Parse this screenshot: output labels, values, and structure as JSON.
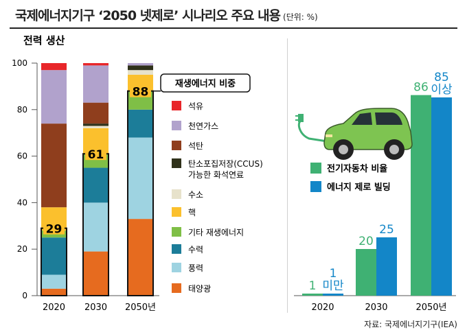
{
  "title": "국제에너지기구 ‘2050 넷제로’ 시나리오 주요 내용",
  "unit": "(단위: %)",
  "source": "자료: 국제에너지기구(IEA)",
  "colors": {
    "석유": "#e8262a",
    "천연가스": "#b1a2cc",
    "석탄": "#8f3e1d",
    "탄소포집저장": "#2f311a",
    "수소": "#e7e2cb",
    "핵": "#fbc02d",
    "기타 재생에너지": "#7fbf46",
    "수력": "#1c7d99",
    "풍력": "#9ed3e1",
    "태양광": "#e66b1f",
    "전기자동차": "#3fb173",
    "빌딩": "#1386c8",
    "car": "#7ec451"
  },
  "chart_data": [
    {
      "type": "bar",
      "stacked": true,
      "title": "전력 생산",
      "categories": [
        "2020",
        "2030",
        "2050년"
      ],
      "ylim": [
        0,
        100
      ],
      "yticks": [
        0,
        20,
        40,
        60,
        80,
        100
      ],
      "series": [
        {
          "name": "태양광",
          "values": [
            3,
            19,
            33
          ]
        },
        {
          "name": "풍력",
          "values": [
            6,
            21,
            35
          ]
        },
        {
          "name": "수력",
          "values": [
            16,
            15,
            12
          ]
        },
        {
          "name": "기타 재생에너지",
          "values": [
            3,
            6,
            8
          ]
        },
        {
          "name": "핵",
          "values": [
            10,
            11,
            7
          ]
        },
        {
          "name": "수소",
          "values": [
            0,
            1,
            2
          ]
        },
        {
          "name": "탄소포집저장(CCUS)\n가능한 화석연료",
          "values": [
            0,
            1,
            2
          ]
        },
        {
          "name": "석탄",
          "values": [
            36,
            9,
            0
          ]
        },
        {
          "name": "천연가스",
          "values": [
            23,
            16,
            1
          ]
        },
        {
          "name": "석유",
          "values": [
            3,
            1,
            0
          ]
        }
      ],
      "renewable_share": {
        "label": "재생에너지 비중",
        "values": [
          29,
          61,
          88
        ]
      }
    },
    {
      "type": "bar",
      "categories": [
        "2020",
        "2030",
        "2050년"
      ],
      "ylim": [
        0,
        100
      ],
      "series": [
        {
          "name": "전기자동차 비율",
          "values": [
            1,
            20,
            86
          ],
          "labels": [
            "1",
            "20",
            "86"
          ]
        },
        {
          "name": "에너지 제로 빌딩",
          "values": [
            1,
            25,
            85
          ],
          "labels": [
            "1\n미만",
            "25",
            "85\n이상"
          ]
        }
      ]
    }
  ]
}
